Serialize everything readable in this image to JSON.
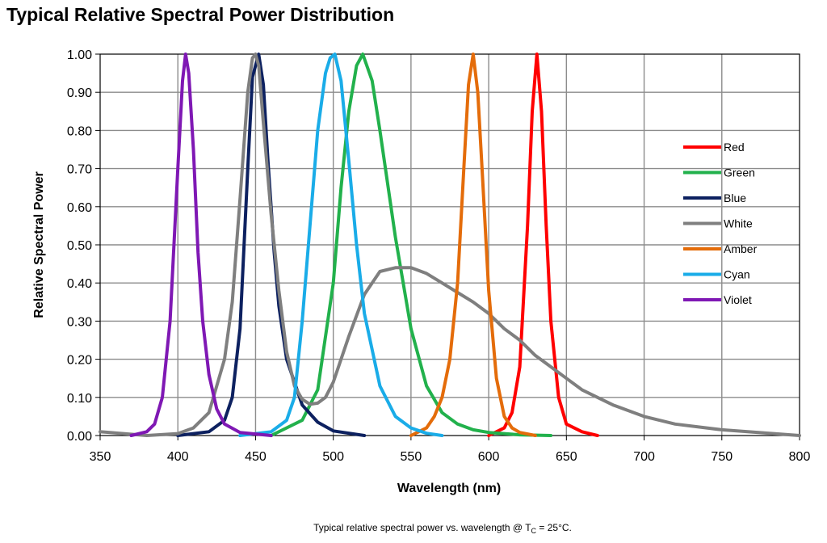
{
  "chart_data": {
    "type": "line",
    "title": "Typical Relative Spectral Power Distribution",
    "xlabel": "Wavelength (nm)",
    "ylabel": "Relative Spectral Power",
    "xlim": [
      350,
      800
    ],
    "ylim": [
      0,
      1.0
    ],
    "xticks": [
      "350",
      "400",
      "450",
      "500",
      "550",
      "600",
      "650",
      "700",
      "750",
      "800"
    ],
    "yticks": [
      "0.00",
      "0.10",
      "0.20",
      "0.30",
      "0.40",
      "0.50",
      "0.60",
      "0.70",
      "0.80",
      "0.90",
      "1.00"
    ],
    "grid": true,
    "legend_position": "right",
    "caption": {
      "prefix": "Typical relative spectral power vs. wavelength @ T",
      "subscript": "C",
      "suffix": " = 25°C."
    },
    "series": [
      {
        "name": "Red",
        "color": "#FF0000",
        "x": [
          600,
          610,
          615,
          620,
          625,
          628,
          631,
          634,
          637,
          640,
          645,
          650,
          660,
          670
        ],
        "y": [
          0.0,
          0.02,
          0.06,
          0.18,
          0.55,
          0.85,
          1.0,
          0.85,
          0.55,
          0.3,
          0.1,
          0.03,
          0.01,
          0.0
        ]
      },
      {
        "name": "Green",
        "color": "#22B14C",
        "x": [
          460,
          480,
          490,
          500,
          505,
          510,
          515,
          519,
          525,
          530,
          540,
          550,
          560,
          570,
          580,
          590,
          600,
          620,
          640
        ],
        "y": [
          0.0,
          0.04,
          0.12,
          0.4,
          0.65,
          0.85,
          0.97,
          1.0,
          0.93,
          0.8,
          0.52,
          0.28,
          0.13,
          0.06,
          0.03,
          0.015,
          0.008,
          0.002,
          0.0
        ]
      },
      {
        "name": "Blue",
        "color": "#0D2160",
        "x": [
          400,
          420,
          430,
          435,
          440,
          445,
          448,
          452,
          455,
          458,
          462,
          465,
          470,
          480,
          490,
          500,
          520
        ],
        "y": [
          0.0,
          0.01,
          0.04,
          0.1,
          0.28,
          0.7,
          0.94,
          1.0,
          0.92,
          0.72,
          0.48,
          0.34,
          0.2,
          0.08,
          0.035,
          0.012,
          0.0
        ]
      },
      {
        "name": "White",
        "color": "#7F7F7F",
        "x": [
          350,
          380,
          400,
          410,
          420,
          430,
          435,
          440,
          445,
          448,
          450,
          452,
          455,
          460,
          465,
          470,
          475,
          480,
          485,
          490,
          495,
          500,
          510,
          520,
          530,
          540,
          550,
          560,
          570,
          580,
          590,
          600,
          610,
          620,
          630,
          640,
          650,
          660,
          670,
          680,
          700,
          720,
          750,
          800
        ],
        "y": [
          0.01,
          0.0,
          0.005,
          0.02,
          0.06,
          0.2,
          0.35,
          0.62,
          0.9,
          0.99,
          1.0,
          0.97,
          0.82,
          0.58,
          0.38,
          0.22,
          0.13,
          0.095,
          0.082,
          0.085,
          0.1,
          0.14,
          0.26,
          0.37,
          0.43,
          0.44,
          0.44,
          0.425,
          0.4,
          0.375,
          0.35,
          0.32,
          0.28,
          0.25,
          0.21,
          0.18,
          0.15,
          0.12,
          0.1,
          0.08,
          0.05,
          0.03,
          0.015,
          0.0
        ]
      },
      {
        "name": "Amber",
        "color": "#E46C0A",
        "x": [
          550,
          560,
          565,
          570,
          575,
          580,
          584,
          587,
          590,
          593,
          596,
          600,
          605,
          610,
          615,
          620,
          630
        ],
        "y": [
          0.0,
          0.02,
          0.05,
          0.1,
          0.2,
          0.4,
          0.7,
          0.92,
          1.0,
          0.9,
          0.68,
          0.38,
          0.15,
          0.05,
          0.02,
          0.008,
          0.0
        ]
      },
      {
        "name": "Cyan",
        "color": "#1AACE8",
        "x": [
          440,
          460,
          470,
          475,
          480,
          485,
          490,
          495,
          498,
          501,
          505,
          510,
          515,
          520,
          530,
          540,
          550,
          560,
          570
        ],
        "y": [
          0.0,
          0.01,
          0.04,
          0.1,
          0.3,
          0.55,
          0.8,
          0.95,
          0.99,
          1.0,
          0.93,
          0.72,
          0.5,
          0.32,
          0.13,
          0.05,
          0.02,
          0.006,
          0.0
        ]
      },
      {
        "name": "Violet",
        "color": "#7F18B4",
        "x": [
          370,
          380,
          385,
          390,
          395,
          400,
          403,
          405,
          407,
          410,
          413,
          416,
          420,
          425,
          430,
          440,
          460
        ],
        "y": [
          0.0,
          0.01,
          0.03,
          0.1,
          0.3,
          0.7,
          0.93,
          1.0,
          0.95,
          0.75,
          0.48,
          0.3,
          0.16,
          0.07,
          0.03,
          0.008,
          0.0
        ]
      }
    ]
  }
}
